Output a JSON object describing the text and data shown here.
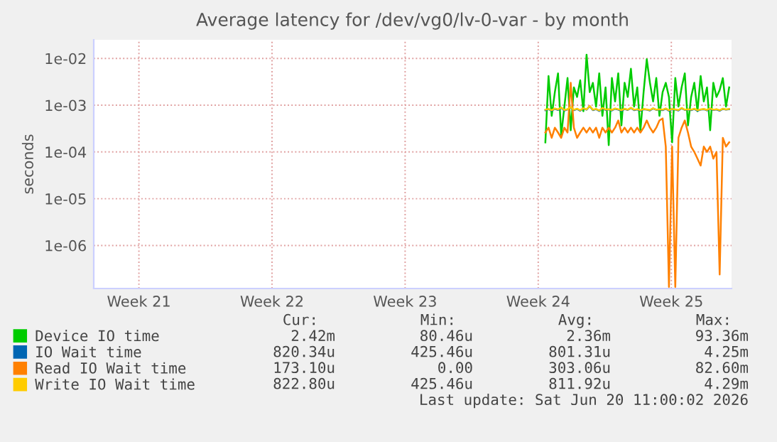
{
  "chart_data": {
    "type": "line",
    "title": "Average latency for /dev/vg0/lv-0-var - by month",
    "ylabel": "seconds",
    "x": [
      "2026-06-10T16:00",
      "2026-06-10T20:00",
      "2026-06-11T00:00",
      "2026-06-11T04:00",
      "2026-06-11T08:00",
      "2026-06-11T12:00",
      "2026-06-11T16:00",
      "2026-06-11T20:00",
      "2026-06-12T00:00",
      "2026-06-12T04:00",
      "2026-06-12T08:00",
      "2026-06-12T12:00",
      "2026-06-12T16:00",
      "2026-06-12T20:00",
      "2026-06-13T00:00",
      "2026-06-13T04:00",
      "2026-06-13T08:00",
      "2026-06-13T12:00",
      "2026-06-13T16:00",
      "2026-06-13T20:00",
      "2026-06-14T00:00",
      "2026-06-14T04:00",
      "2026-06-14T08:00",
      "2026-06-14T12:00",
      "2026-06-14T16:00",
      "2026-06-14T20:00",
      "2026-06-15T00:00",
      "2026-06-15T04:00",
      "2026-06-15T08:00",
      "2026-06-15T12:00",
      "2026-06-15T16:00",
      "2026-06-15T20:00",
      "2026-06-16T00:00",
      "2026-06-16T04:00",
      "2026-06-16T08:00",
      "2026-06-16T12:00",
      "2026-06-16T16:00",
      "2026-06-16T20:00",
      "2026-06-17T00:00",
      "2026-06-17T04:00",
      "2026-06-17T08:00",
      "2026-06-17T12:00",
      "2026-06-17T16:00",
      "2026-06-17T20:00",
      "2026-06-18T00:00",
      "2026-06-18T04:00",
      "2026-06-18T08:00",
      "2026-06-18T12:00",
      "2026-06-18T16:00",
      "2026-06-18T20:00",
      "2026-06-19T00:00",
      "2026-06-19T04:00",
      "2026-06-19T08:00",
      "2026-06-19T12:00",
      "2026-06-19T16:00",
      "2026-06-19T20:00",
      "2026-06-20T00:00",
      "2026-06-20T04:00",
      "2026-06-20T08:00"
    ],
    "series": [
      {
        "name": "Device IO time",
        "color": "#00cc00",
        "values": [
          0.00016,
          0.0042,
          0.00059,
          0.0019,
          0.0048,
          0.00023,
          0.00093,
          0.0038,
          0.00029,
          0.0024,
          0.0015,
          0.0034,
          0.00074,
          0.012,
          0.0019,
          0.003,
          0.00093,
          0.0048,
          0.00059,
          0.0024,
          0.00014,
          0.0038,
          0.0012,
          0.0048,
          0.00037,
          0.003,
          0.0015,
          0.006,
          0.00093,
          0.0024,
          0.00029,
          0.0019,
          0.0096,
          0.003,
          0.0012,
          0.0038,
          0.00059,
          0.0019,
          0.003,
          0.0015,
          0.00016,
          0.0038,
          0.00093,
          0.0024,
          0.0048,
          0.00037,
          0.0015,
          0.003,
          0.00074,
          0.0042,
          0.0012,
          0.0024,
          0.00029,
          0.003,
          0.0015,
          0.0021,
          0.0038,
          0.00093,
          0.0024
        ]
      },
      {
        "name": "IO Wait time",
        "color": "#0066b3",
        "values": [
          0.00078,
          0.00082,
          0.00076,
          0.00084,
          0.00079,
          0.00088,
          0.00077,
          0.00081,
          0.0009,
          0.00078,
          0.00083,
          0.00076,
          0.00085,
          0.0008,
          0.00095,
          0.00078,
          0.00082,
          0.00075,
          0.00086,
          0.00079,
          0.00081,
          0.00077,
          0.00084,
          0.0008,
          0.00076,
          0.00083,
          0.00079,
          0.00087,
          0.00078,
          0.00081,
          0.00076,
          0.00082,
          0.0008,
          0.00077,
          0.00085,
          0.00079,
          0.00081,
          0.00078,
          0.00084,
          0.00076,
          0.00082,
          0.0008,
          0.00077,
          0.00086,
          0.00079,
          0.00081,
          0.00078,
          0.00083,
          0.00076,
          0.0008,
          0.00082,
          0.00077,
          0.00084,
          0.00079,
          0.00081,
          0.00076,
          0.00083,
          0.0008,
          0.00082
        ]
      },
      {
        "name": "Read IO Wait time",
        "color": "#ff8000",
        "values": [
          0.00026,
          0.00033,
          0.0002,
          0.00033,
          0.00026,
          0.0002,
          0.00033,
          0.00026,
          0.003,
          0.00033,
          0.0002,
          0.00026,
          0.00033,
          0.00026,
          0.00033,
          0.00026,
          0.00033,
          0.0002,
          0.00033,
          0.00026,
          0.00033,
          0.00026,
          0.00033,
          0.00047,
          0.00026,
          0.00033,
          0.00026,
          0.00033,
          0.00026,
          0.00033,
          0.00026,
          0.00033,
          0.00047,
          0.00033,
          0.00026,
          0.00033,
          0.00047,
          0.00052,
          0.00013,
          1.3e-07,
          0.00013,
          1.3e-07,
          0.0002,
          0.00033,
          0.00047,
          0.00026,
          0.00013,
          0.0001,
          7.2e-05,
          5.1e-05,
          0.00013,
          0.0001,
          0.00013,
          7.2e-05,
          0.0001,
          2.4e-07,
          0.0002,
          0.00013,
          0.00016
        ]
      },
      {
        "name": "Write IO Wait time",
        "color": "#ffcc00",
        "values": [
          0.0008,
          0.00083,
          0.00078,
          0.00085,
          0.00081,
          0.00089,
          0.00079,
          0.00082,
          0.00091,
          0.0008,
          0.00084,
          0.00078,
          0.00086,
          0.00081,
          0.00096,
          0.0008,
          0.00083,
          0.00077,
          0.00087,
          0.00081,
          0.00082,
          0.00079,
          0.00085,
          0.00082,
          0.00078,
          0.00084,
          0.0008,
          0.00088,
          0.0008,
          0.00082,
          0.00078,
          0.00083,
          0.00081,
          0.00079,
          0.00086,
          0.0008,
          0.00082,
          0.0008,
          0.00085,
          0.00078,
          0.00083,
          0.00081,
          0.00079,
          0.00087,
          0.0008,
          0.00082,
          0.0008,
          0.00084,
          0.00078,
          0.00081,
          0.00083,
          0.00079,
          0.00085,
          0.0008,
          0.00082,
          0.00078,
          0.00084,
          0.00081,
          0.00083
        ]
      }
    ],
    "log": "y",
    "ylim": [
      1.2e-07,
      0.025
    ],
    "yticks": [
      {
        "value": 1e-06,
        "label": "1e-06"
      },
      {
        "value": 1e-05,
        "label": "1e-05"
      },
      {
        "value": 0.0001,
        "label": "1e-04"
      },
      {
        "value": 0.001,
        "label": "1e-03"
      },
      {
        "value": 0.01,
        "label": "1e-02"
      }
    ],
    "xlim": [
      "2026-05-17T22:00",
      "2026-06-20T11:00"
    ],
    "xticks": [
      {
        "value": "2026-05-20T07:00",
        "label": "Week 21"
      },
      {
        "value": "2026-05-27T07:00",
        "label": "Week 22"
      },
      {
        "value": "2026-06-03T07:00",
        "label": "Week 23"
      },
      {
        "value": "2026-06-10T07:00",
        "label": "Week 24"
      },
      {
        "value": "2026-06-17T07:00",
        "label": "Week 25"
      }
    ],
    "grid": true,
    "legend": "bottom",
    "line_style": "solid",
    "marker": "none",
    "annotations": [
      "Cur:",
      "Min:",
      "Avg:",
      "Max:",
      "2.42m",
      "80.46u",
      "2.36m",
      "93.36m",
      "820.34u",
      "425.46u",
      "801.31u",
      "4.25m",
      "173.10u",
      "0.00",
      "303.06u",
      "82.60m",
      "822.80u",
      "425.46u",
      "811.92u",
      "4.29m",
      "Last update: Sat Jun 20 11:00:02 2026"
    ]
  }
}
